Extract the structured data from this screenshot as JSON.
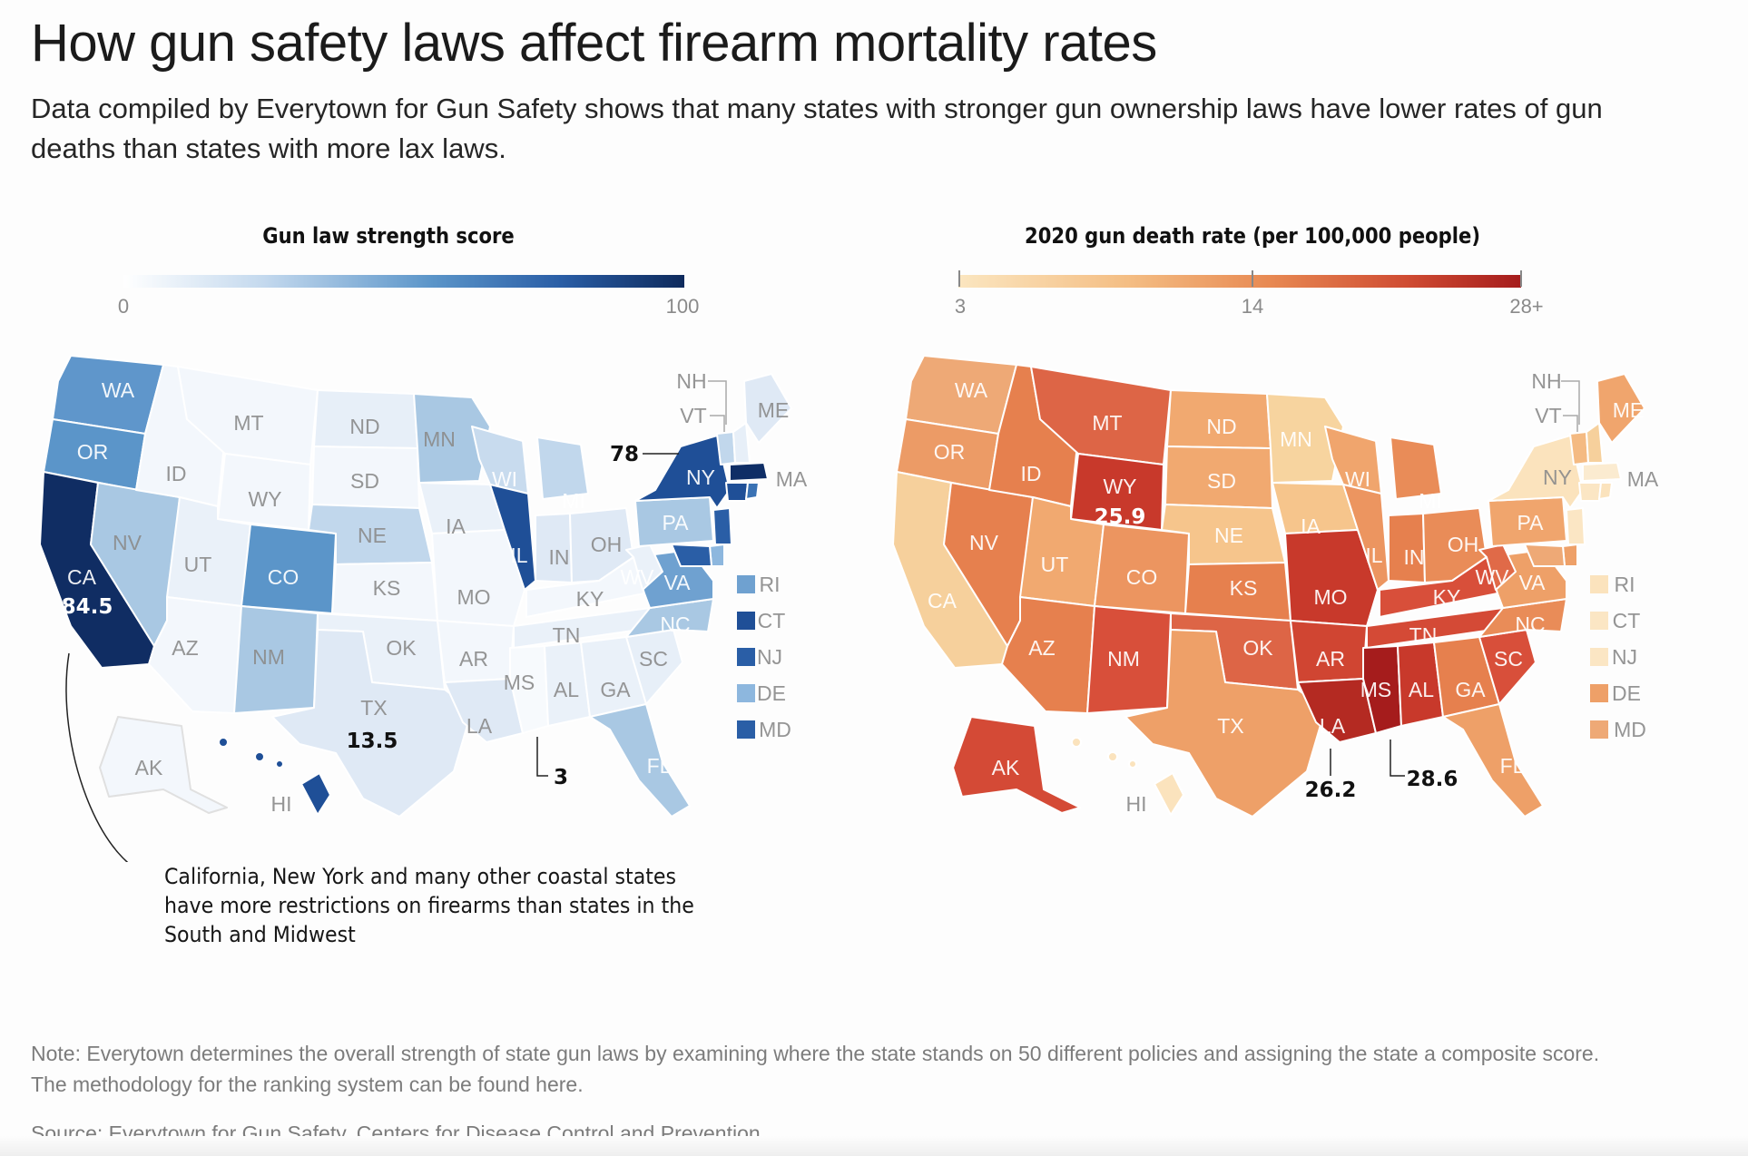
{
  "title": "How gun safety laws affect firearm mortality rates",
  "subtitle": "Data compiled by Everytown for Gun Safety shows that many states with stronger gun ownership laws have lower rates of gun deaths than states with more lax laws.",
  "left_map": {
    "legend_title": "Gun law strength score",
    "scale_min": "0",
    "scale_max": "100",
    "colors": {
      "low": "#f4f8fd",
      "mid": "#5b95c9",
      "high": "#0e2a5c"
    },
    "callouts": {
      "CA": "84.5",
      "NY": "78",
      "TX": "13.5",
      "MS": "3"
    },
    "annotation": "California, New York and many other coastal states have more restrictions on firearms than states in the South and Midwest"
  },
  "right_map": {
    "legend_title": "2020 gun death rate (per 100,000 people)",
    "scale_min": "3",
    "scale_mid": "14",
    "scale_max": "28+",
    "colors": {
      "low": "#fbe3b8",
      "mid": "#e88a53",
      "high": "#a51c1c"
    },
    "callouts": {
      "WY": "25.9",
      "LA": "26.2",
      "MS": "28.6"
    }
  },
  "state_labels": {
    "WA": "WA",
    "OR": "OR",
    "CA": "CA",
    "NV": "NV",
    "ID": "ID",
    "MT": "MT",
    "WY": "WY",
    "UT": "UT",
    "AZ": "AZ",
    "CO": "CO",
    "NM": "NM",
    "ND": "ND",
    "SD": "SD",
    "NE": "NE",
    "KS": "KS",
    "OK": "OK",
    "TX": "TX",
    "MN": "MN",
    "IA": "IA",
    "MO": "MO",
    "AR": "AR",
    "LA": "LA",
    "WI": "WI",
    "IL": "IL",
    "MI": "MI",
    "IN": "IN",
    "OH": "OH",
    "KY": "KY",
    "TN": "TN",
    "MS": "MS",
    "AL": "AL",
    "GA": "GA",
    "FL": "FL",
    "SC": "SC",
    "NC": "NC",
    "VA": "VA",
    "WV": "WV",
    "PA": "PA",
    "NY": "NY",
    "ME": "ME",
    "NH": "NH",
    "VT": "VT",
    "MA": "MA",
    "RI": "RI",
    "CT": "CT",
    "NJ": "NJ",
    "DE": "DE",
    "MD": "MD",
    "AK": "AK",
    "HI": "HI"
  },
  "map_data": {
    "gun_law_strength_score": {
      "CA": 84.5,
      "NY": 78,
      "TX": 13.5,
      "MS": 3,
      "WA": 68,
      "OR": 62,
      "NV": 30,
      "ID": 4,
      "MT": 5,
      "WY": 4,
      "UT": 12,
      "AZ": 6,
      "CO": 55,
      "NM": 30,
      "ND": 12,
      "SD": 5,
      "NE": 26,
      "KS": 8,
      "OK": 6,
      "MN": 38,
      "IA": 14,
      "MO": 4,
      "AR": 4,
      "LA": 13,
      "WI": 27,
      "IL": 78,
      "MI": 30,
      "IN": 15,
      "OH": 14,
      "KY": 6,
      "TN": 10,
      "AL": 7,
      "GA": 7,
      "FL": 32,
      "SC": 10,
      "NC": 28,
      "VA": 44,
      "WV": 10,
      "PA": 40,
      "ME": 22,
      "NH": 15,
      "VT": 30,
      "MA": 80,
      "RI": 60,
      "CT": 82,
      "NJ": 80,
      "DE": 50,
      "MD": 74,
      "AK": 4,
      "HI": 78
    },
    "gun_death_rate_2020": {
      "WY": 25.9,
      "LA": 26.2,
      "MS": 28.6,
      "WA": 10.9,
      "OR": 12.6,
      "CA": 8.5,
      "NV": 16.8,
      "ID": 16.6,
      "MT": 19.9,
      "UT": 13.2,
      "AZ": 17.3,
      "CO": 15.4,
      "NM": 21.8,
      "ND": 13.5,
      "SD": 13.6,
      "NE": 10.5,
      "KS": 16.6,
      "OK": 19.5,
      "TX": 14.2,
      "MN": 8.9,
      "IA": 9.9,
      "MO": 23.9,
      "AR": 21.6,
      "WI": 12.2,
      "IL": 14.1,
      "MI": 15.2,
      "IN": 16.8,
      "OH": 15.2,
      "KY": 20.1,
      "TN": 22.0,
      "AL": 23.6,
      "GA": 17.7,
      "FL": 13.7,
      "SC": 20.5,
      "NC": 15.2,
      "VA": 13.1,
      "WV": 17.6,
      "PA": 12.1,
      "NY": 5.4,
      "ME": 11.4,
      "NH": 8.7,
      "VT": 11.2,
      "MA": 3.4,
      "RI": 5.1,
      "CT": 5.6,
      "NJ": 5.0,
      "DE": 13.7,
      "MD": 12.9,
      "AK": 23.5,
      "HI": 4.8
    }
  },
  "note": "Note: Everytown determines the overall strength of state gun laws by examining where the state stands on 50 different policies and assigning the state a composite score. The methodology for the ranking system can be found here.",
  "source": "Source: Everytown for Gun Safety, Centers for Disease Control and Prevention"
}
